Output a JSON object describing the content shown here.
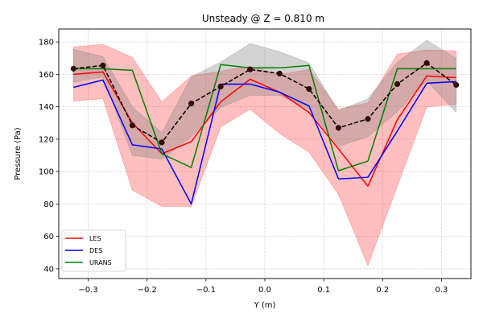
{
  "chart_data": {
    "type": "line",
    "title": "Unsteady @ Z = 0.810 m",
    "xlabel": "Y (m)",
    "ylabel": "Pressure (Pa)",
    "xlim": [
      -0.35,
      0.35
    ],
    "ylim": [
      34,
      188
    ],
    "xticks": [
      -0.3,
      -0.2,
      -0.1,
      0.0,
      0.1,
      0.2,
      0.3
    ],
    "xtick_labels": [
      "−0.3",
      "−0.2",
      "−0.1",
      "0.0",
      "0.1",
      "0.2",
      "0.3"
    ],
    "yticks": [
      40,
      60,
      80,
      100,
      120,
      140,
      160,
      180
    ],
    "ytick_labels": [
      "40",
      "60",
      "80",
      "100",
      "120",
      "140",
      "160",
      "180"
    ],
    "grid": true,
    "legend_position": "lower-left",
    "x": [
      -0.325,
      -0.275,
      -0.225,
      -0.175,
      -0.125,
      -0.075,
      -0.025,
      0.025,
      0.075,
      0.125,
      0.175,
      0.225,
      0.275,
      0.325
    ],
    "series": [
      {
        "name": "LES",
        "color": "#ff0000",
        "style": "solid",
        "values": [
          160,
          161.5,
          130,
          111,
          118.5,
          143,
          157,
          149,
          136.5,
          114,
          91,
          132,
          159,
          158
        ]
      },
      {
        "name": "DES",
        "color": "#0000ff",
        "style": "solid",
        "values": [
          152,
          156.5,
          116.5,
          114,
          80,
          154,
          154,
          149,
          140.5,
          95.5,
          96.5,
          125,
          154.5,
          155.5
        ]
      },
      {
        "name": "URANS",
        "color": "#008000",
        "style": "solid",
        "values": [
          163.5,
          163.5,
          162.5,
          111,
          102.5,
          166,
          164,
          164,
          165.5,
          100.5,
          106.5,
          163.5,
          163.5,
          163.5
        ]
      },
      {
        "name": "",
        "color": "#000000",
        "style": "dashed",
        "markers": true,
        "values": [
          163.5,
          165.5,
          128.5,
          118,
          142,
          152.5,
          163,
          160.5,
          151,
          127,
          132.5,
          154,
          167,
          153.5
        ]
      }
    ],
    "bands": [
      {
        "color": "#ff0000",
        "opacity": 0.25,
        "lower": [
          143.5,
          145,
          88.5,
          78.5,
          78.5,
          127.5,
          138.5,
          123.5,
          112,
          86,
          42,
          91,
          140,
          141.5
        ],
        "upper": [
          177,
          178.5,
          170.5,
          143,
          159,
          162,
          165,
          160,
          163,
          138.5,
          142.5,
          172.5,
          175,
          174.5
        ]
      },
      {
        "color": "#808080",
        "opacity": 0.35,
        "lower": [
          155,
          158.5,
          110,
          107.5,
          121.5,
          139.5,
          147,
          147,
          138.5,
          115.5,
          121.5,
          137,
          156,
          136.5
        ],
        "upper": [
          175.5,
          171,
          140,
          124,
          158.5,
          167.5,
          179,
          174,
          167,
          137.5,
          145,
          167.5,
          181,
          170
        ]
      }
    ]
  }
}
